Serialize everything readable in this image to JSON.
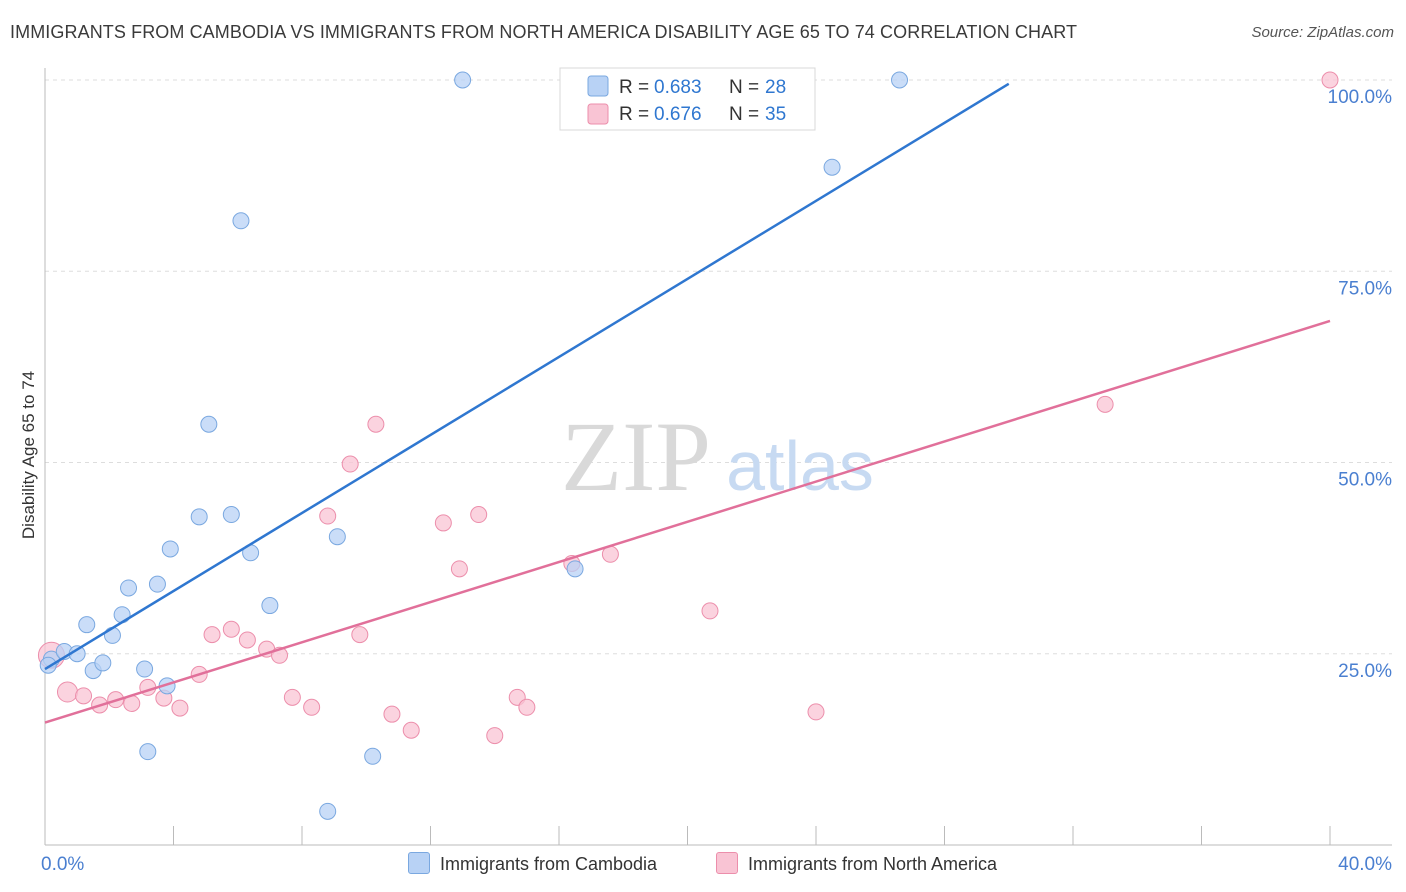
{
  "title": "IMMIGRANTS FROM CAMBODIA VS IMMIGRANTS FROM NORTH AMERICA DISABILITY AGE 65 TO 74 CORRELATION CHART",
  "source": "Source: ZipAtlas.com",
  "watermark": {
    "zip": "ZIP",
    "atlas": "atlas"
  },
  "colors": {
    "blue_fill": "#b8d2f5",
    "blue_stroke": "#7aa8e0",
    "blue_line": "#2f77d0",
    "pink_fill": "#f9c4d4",
    "pink_stroke": "#ec8eab",
    "pink_line": "#e1709a",
    "axis_text": "#4a7fd0",
    "grid": "#dddddd"
  },
  "legend": {
    "series": [
      {
        "r_label": "R = ",
        "r_value": "0.683",
        "n_label": "N = ",
        "n_value": "28"
      },
      {
        "r_label": "R = ",
        "r_value": "0.676",
        "n_label": "N = ",
        "n_value": "35"
      }
    ]
  },
  "chart_data": {
    "type": "scatter",
    "title": "IMMIGRANTS FROM CAMBODIA VS IMMIGRANTS FROM NORTH AMERICA DISABILITY AGE 65 TO 74 CORRELATION CHART",
    "xlabel": "",
    "ylabel": "Disability Age 65 to 74",
    "xlim": [
      0,
      40
    ],
    "ylim": [
      0,
      102
    ],
    "x_tick_labels": [
      "0.0%",
      "40.0%"
    ],
    "y_ticks": [
      {
        "value": 25,
        "label": "25.0%"
      },
      {
        "value": 50,
        "label": "50.0%"
      },
      {
        "value": 75,
        "label": "75.0%"
      },
      {
        "value": 100,
        "label": "100.0%"
      }
    ],
    "series": [
      {
        "name": "Immigrants from Cambodia",
        "color": "#b8d2f5",
        "r": "0.683",
        "n": "28",
        "trend": {
          "x0": 0.0,
          "y0": 23.0,
          "x1": 30.0,
          "y1": 99.5
        },
        "points": [
          [
            0.2,
            24.3
          ],
          [
            0.6,
            25.3
          ],
          [
            1.0,
            25.0
          ],
          [
            1.3,
            28.8
          ],
          [
            1.5,
            22.8
          ],
          [
            1.8,
            23.8
          ],
          [
            2.1,
            27.4
          ],
          [
            2.4,
            30.1
          ],
          [
            2.6,
            33.6
          ],
          [
            3.1,
            23.0
          ],
          [
            3.5,
            34.1
          ],
          [
            3.9,
            38.7
          ],
          [
            3.8,
            20.8
          ],
          [
            3.2,
            12.2
          ],
          [
            4.8,
            42.9
          ],
          [
            5.1,
            55.0
          ],
          [
            5.8,
            43.2
          ],
          [
            6.1,
            81.6
          ],
          [
            6.4,
            38.2
          ],
          [
            7.0,
            31.3
          ],
          [
            8.8,
            4.4
          ],
          [
            9.1,
            40.3
          ],
          [
            10.2,
            11.6
          ],
          [
            13.0,
            100.0
          ],
          [
            16.5,
            36.1
          ],
          [
            24.5,
            88.6
          ],
          [
            26.6,
            100.0
          ],
          [
            0.1,
            23.5
          ]
        ]
      },
      {
        "name": "Immigrants from North America",
        "color": "#f9c4d4",
        "r": "0.676",
        "n": "35",
        "trend": {
          "x0": 0.0,
          "y0": 16.0,
          "x1": 40.0,
          "y1": 68.5
        },
        "points": [
          [
            0.2,
            24.8
          ],
          [
            0.7,
            20.0
          ],
          [
            1.2,
            19.5
          ],
          [
            1.7,
            18.3
          ],
          [
            2.2,
            19.0
          ],
          [
            2.7,
            18.5
          ],
          [
            3.2,
            20.6
          ],
          [
            3.7,
            19.2
          ],
          [
            4.2,
            17.9
          ],
          [
            4.8,
            22.3
          ],
          [
            5.2,
            27.5
          ],
          [
            5.8,
            28.2
          ],
          [
            6.3,
            26.8
          ],
          [
            6.9,
            25.6
          ],
          [
            7.3,
            24.8
          ],
          [
            7.7,
            19.3
          ],
          [
            8.3,
            18.0
          ],
          [
            8.8,
            43.0
          ],
          [
            9.5,
            49.8
          ],
          [
            9.8,
            27.5
          ],
          [
            10.3,
            55.0
          ],
          [
            10.8,
            17.1
          ],
          [
            11.4,
            15.0
          ],
          [
            12.4,
            42.1
          ],
          [
            12.9,
            36.1
          ],
          [
            13.5,
            43.2
          ],
          [
            14.0,
            14.3
          ],
          [
            14.7,
            19.3
          ],
          [
            15.0,
            18.0
          ],
          [
            16.4,
            36.8
          ],
          [
            17.6,
            38.0
          ],
          [
            20.7,
            30.6
          ],
          [
            24.0,
            17.4
          ],
          [
            33.0,
            57.6
          ],
          [
            40.0,
            100.0
          ]
        ]
      }
    ]
  }
}
